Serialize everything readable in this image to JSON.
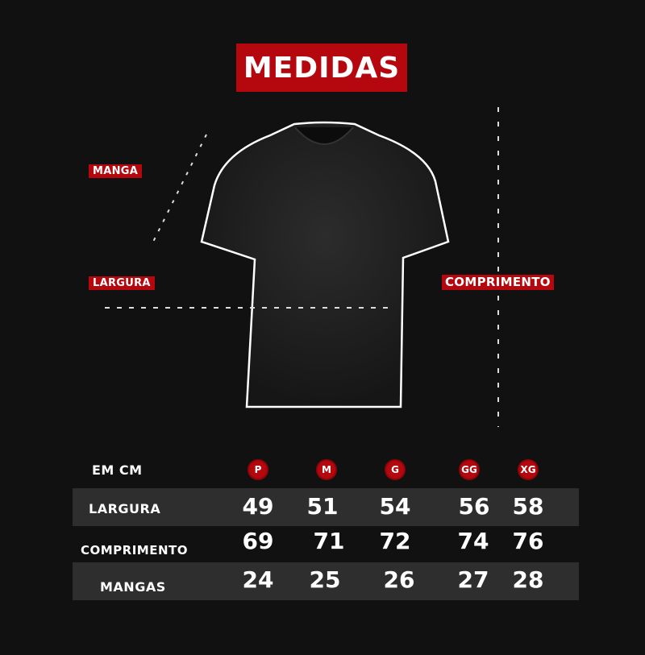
{
  "title": "MEDIDAS",
  "labels": {
    "manga": "MANGA",
    "largura": "LARGURA",
    "comprimento": "COMPRIMENTO"
  },
  "colors": {
    "accent": "#b4070e",
    "background": "#111111",
    "band": "#2e2e2e"
  },
  "table": {
    "unit_label": "EM CM",
    "sizes": [
      "P",
      "M",
      "G",
      "GG",
      "XG"
    ],
    "rows": [
      {
        "label": "LARGURA",
        "values": [
          "49",
          "51",
          "54",
          "56",
          "58"
        ]
      },
      {
        "label": "COMPRIMENTO",
        "values": [
          "69",
          "71",
          "72",
          "74",
          "76"
        ]
      },
      {
        "label": "MANGAS",
        "values": [
          "24",
          "25",
          "26",
          "27",
          "28"
        ]
      }
    ]
  }
}
